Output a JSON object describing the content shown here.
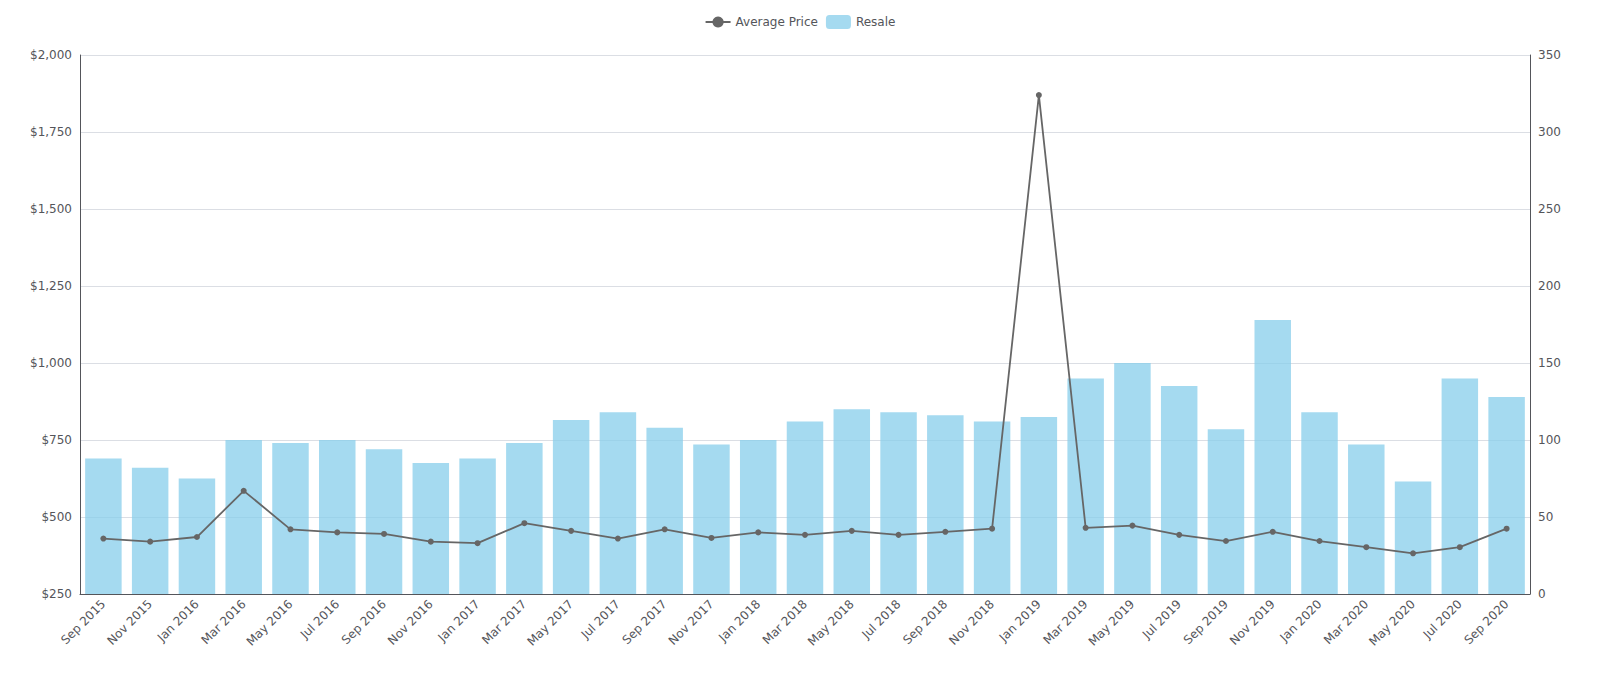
{
  "chart_data": {
    "type": "combo",
    "categories": [
      "Sep 2015",
      "Nov 2015",
      "Jan 2016",
      "Mar 2016",
      "May 2016",
      "Jul 2016",
      "Sep 2016",
      "Nov 2016",
      "Jan 2017",
      "Mar 2017",
      "May 2017",
      "Jul 2017",
      "Sep 2017",
      "Nov 2017",
      "Jan 2018",
      "Mar 2018",
      "May 2018",
      "Jul 2018",
      "Sep 2018",
      "Nov 2018",
      "Jan 2019",
      "Mar 2019",
      "May 2019",
      "Jul 2019",
      "Sep 2019",
      "Nov 2019",
      "Jan 2020",
      "Mar 2020",
      "May 2020",
      "Jul 2020",
      "Sep 2020"
    ],
    "series": [
      {
        "name": "Average Price",
        "type": "line",
        "color": "#666666",
        "marker": "circle",
        "values": [
          430,
          420,
          435,
          585,
          460,
          450,
          445,
          420,
          415,
          480,
          455,
          430,
          460,
          432,
          450,
          442,
          455,
          442,
          452,
          462,
          1870,
          465,
          472,
          442,
          422,
          452,
          422,
          402,
          382,
          402,
          462
        ]
      },
      {
        "name": "Resale",
        "type": "bar",
        "axis": "y2",
        "color": "#87CEEB",
        "values": [
          88,
          82,
          75,
          100,
          98,
          100,
          94,
          85,
          88,
          98,
          113,
          118,
          108,
          97,
          100,
          112,
          120,
          118,
          116,
          112,
          115,
          140,
          150,
          135,
          107,
          178,
          118,
          97,
          73,
          140,
          128
        ]
      }
    ],
    "ylim": [
      250,
      2000
    ],
    "yticks": [
      {
        "value": 250,
        "label": "$250"
      },
      {
        "value": 500,
        "label": "$500"
      },
      {
        "value": 750,
        "label": "$750"
      },
      {
        "value": 1000,
        "label": "$1,000"
      },
      {
        "value": 1250,
        "label": "$1,250"
      },
      {
        "value": 1500,
        "label": "$1,500"
      },
      {
        "value": 1750,
        "label": "$1,750"
      },
      {
        "value": 2000,
        "label": "$2,000"
      }
    ],
    "y2lim": [
      0,
      350
    ],
    "y2ticks": [
      0,
      50,
      100,
      150,
      200,
      250,
      300,
      350
    ],
    "grid": true,
    "legend": "top"
  }
}
